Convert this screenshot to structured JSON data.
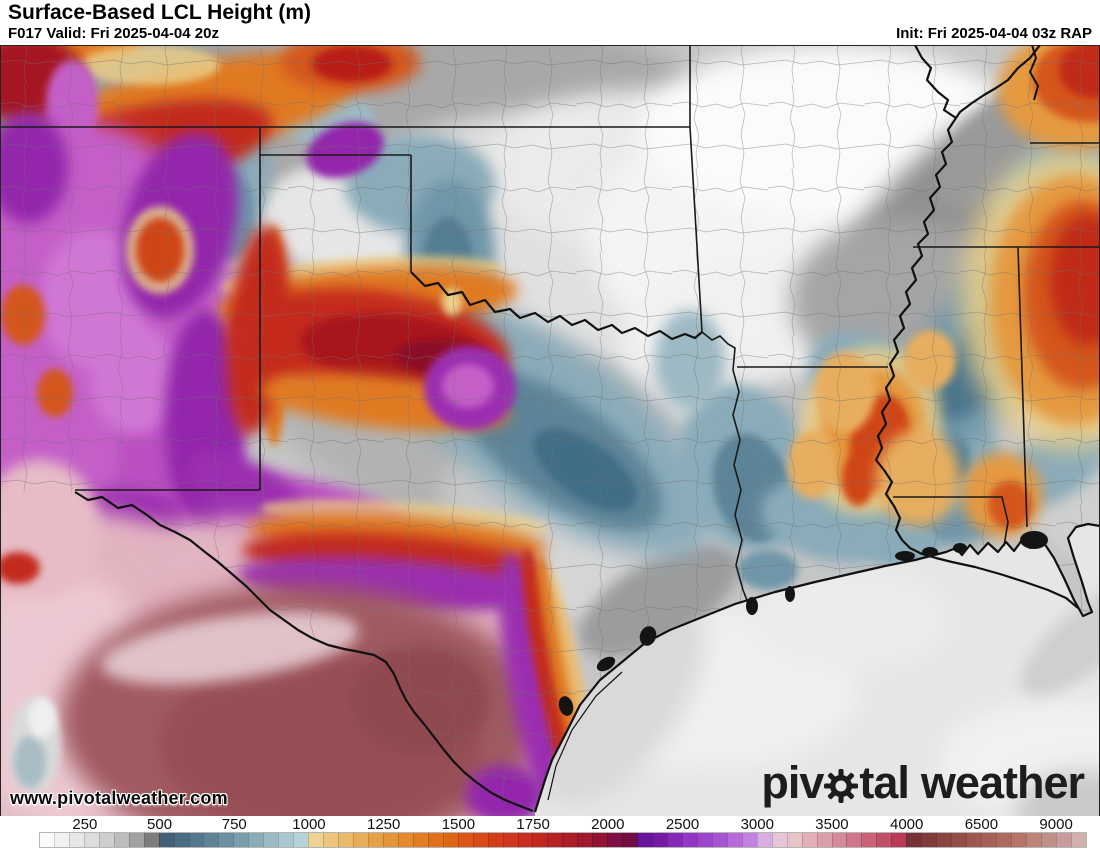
{
  "header": {
    "title": "Surface-Based LCL Height (m)",
    "forecast_info": "F017 Valid: Fri 2025-04-04 20z",
    "init_info": "Init: Fri 2025-04-04 03z RAP",
    "model": "RAP",
    "forecast_hour": "F017"
  },
  "map": {
    "watermark": "www.pivotalweather.com",
    "logo": {
      "text_before_gear": "piv",
      "text_after_gear": "tal",
      "text_second_word": "weather",
      "gear_icon": "gear-icon"
    }
  },
  "colorbar": {
    "tick_labels": [
      "250",
      "500",
      "750",
      "1000",
      "1250",
      "1500",
      "1750",
      "2000",
      "2500",
      "3000",
      "3500",
      "4000",
      "6500",
      "9000"
    ],
    "tick_cell_positions": [
      3,
      8,
      13,
      18,
      23,
      28,
      33,
      38,
      43,
      48,
      53,
      58,
      63,
      68
    ],
    "cell_count": 70,
    "gradient_stops": [
      {
        "cell": 0,
        "color": "#ffffff"
      },
      {
        "cell": 2,
        "color": "#ececec"
      },
      {
        "cell": 4,
        "color": "#d6d6d6"
      },
      {
        "cell": 6,
        "color": "#b5b5b5"
      },
      {
        "cell": 7.9,
        "color": "#6e6e6e"
      },
      {
        "cell": 8,
        "color": "#3b5b6f"
      },
      {
        "cell": 10,
        "color": "#4e7489"
      },
      {
        "cell": 12,
        "color": "#66889b"
      },
      {
        "cell": 14,
        "color": "#81a4b2"
      },
      {
        "cell": 16,
        "color": "#a2c2c9"
      },
      {
        "cell": 17.9,
        "color": "#bdd6d7"
      },
      {
        "cell": 18,
        "color": "#eed9a0"
      },
      {
        "cell": 20,
        "color": "#ebbf72"
      },
      {
        "cell": 23,
        "color": "#e59a3f"
      },
      {
        "cell": 25,
        "color": "#e2852a"
      },
      {
        "cell": 27,
        "color": "#e06c16"
      },
      {
        "cell": 29,
        "color": "#da4f16"
      },
      {
        "cell": 31,
        "color": "#d03a1d"
      },
      {
        "cell": 33,
        "color": "#c62b1e"
      },
      {
        "cell": 35,
        "color": "#b21f26"
      },
      {
        "cell": 37,
        "color": "#9a1530"
      },
      {
        "cell": 37.9,
        "color": "#8c1038"
      },
      {
        "cell": 38,
        "color": "#851040"
      },
      {
        "cell": 39.9,
        "color": "#700c45"
      },
      {
        "cell": 40,
        "color": "#621095"
      },
      {
        "cell": 41.5,
        "color": "#741ba6"
      },
      {
        "cell": 43,
        "color": "#8c30c0"
      },
      {
        "cell": 46,
        "color": "#ae5cd8"
      },
      {
        "cell": 47.9,
        "color": "#c88ce4"
      },
      {
        "cell": 48,
        "color": "#d2a0e6"
      },
      {
        "cell": 49,
        "color": "#e0bce0"
      },
      {
        "cell": 50,
        "color": "#eccdd2"
      },
      {
        "cell": 52,
        "color": "#dfa5b1"
      },
      {
        "cell": 54,
        "color": "#d27f91"
      },
      {
        "cell": 56,
        "color": "#c65971"
      },
      {
        "cell": 57.9,
        "color": "#b83350"
      },
      {
        "cell": 58,
        "color": "#6f2b33"
      },
      {
        "cell": 60,
        "color": "#85413f"
      },
      {
        "cell": 63,
        "color": "#a35a54"
      },
      {
        "cell": 65,
        "color": "#b26e62"
      },
      {
        "cell": 67,
        "color": "#bd8b82"
      },
      {
        "cell": 68,
        "color": "#c29391"
      },
      {
        "cell": 70,
        "color": "#d9b8b6"
      }
    ]
  }
}
